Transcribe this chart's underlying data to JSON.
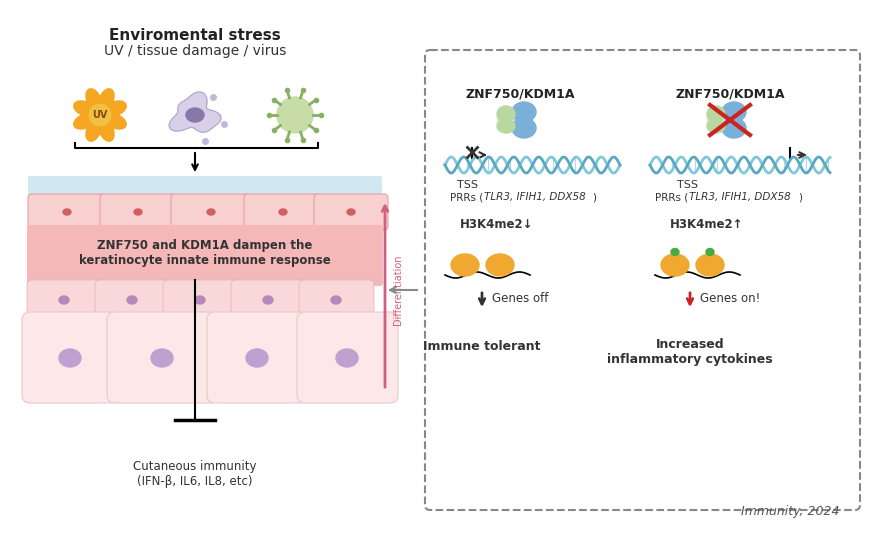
{
  "bg_color": "#ffffff",
  "title_line1": "Enviromental stress",
  "title_line2": "UV / tissue damage / virus",
  "uv_color": "#f5a623",
  "uv_text_color": "#8b4513",
  "cell_body_color": "#f8d0d0",
  "cell_outline_color": "#e8a0a0",
  "nucleus_color": "#c8a0c8",
  "upper_layer_color": "#d0e8f0",
  "middle_text": "ZNF750 and KDM1A dampen the\nkeratinocyte innate immune response",
  "middle_text_bg": "#f5b8b8",
  "diff_arrow_color": "#d06080",
  "cutaneous_text": "Cutaneous immunity\n(IFN-β, IL6, IL8, etc)",
  "box_dash_color": "#888888",
  "znf_left_title": "ZNF750/KDM1A",
  "znf_right_title": "ZNF750/KDM1A",
  "dna_color1": "#7fc8d8",
  "dna_color2": "#5aa8c0",
  "protein_blue_color": "#7ab0d8",
  "protein_green_color": "#a8c888",
  "protein_white_color": "#e8e8e0",
  "tss_label": "TSS",
  "prr_label_left": "PRRs (",
  "prr_italic_left": "TLR3, IFIH1, DDX58",
  "prr_label_right": "PRRs (",
  "prr_italic_right": "TLR3, IFIH1, DDX58",
  "prr_close": ")",
  "block_symbol_color": "#333333",
  "arrow_go_color": "#333333",
  "red_x_color": "#cc2222",
  "h3k4_left": "H3K4me2↓",
  "h3k4_right": "H3K4me2↑",
  "nucleosome_color": "#f0a830",
  "green_mark_color": "#44aa44",
  "genes_off_text": "Genes off",
  "genes_on_text": "Genes on!",
  "immune_tolerant": "Immune tolerant",
  "increased_inflam": "Increased\ninflammatory cytokines",
  "arrow_down_black": "#333333",
  "arrow_down_red": "#cc2222",
  "immunity_text": "Immunity, 2024",
  "immunity_color": "#555555"
}
